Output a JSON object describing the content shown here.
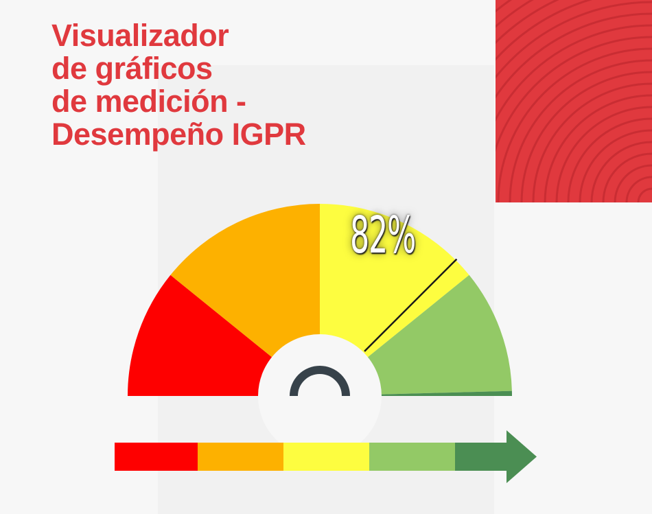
{
  "title_lines": [
    "Visualizador",
    "de gráficos",
    "de medición -",
    "Desempeño IGPR"
  ],
  "chart_data": {
    "type": "gauge",
    "value": 82,
    "value_label": "82%",
    "range": [
      0,
      100
    ],
    "bands": [
      {
        "color": "#fe0000"
      },
      {
        "color": "#fdb100"
      },
      {
        "color": "#fdfd40"
      },
      {
        "color": "#93c966"
      },
      {
        "color": "#4b8e53"
      }
    ]
  },
  "colors": {
    "brand": "#e0393e",
    "needle": "#1a1a1a",
    "hub": "#37424a"
  }
}
